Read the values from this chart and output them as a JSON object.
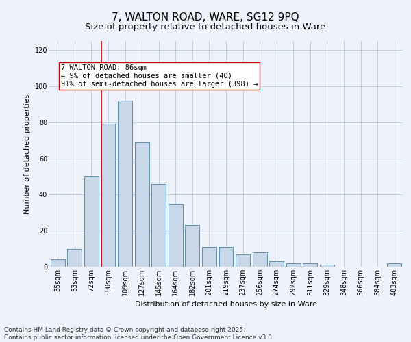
{
  "title_line1": "7, WALTON ROAD, WARE, SG12 9PQ",
  "title_line2": "Size of property relative to detached houses in Ware",
  "xlabel": "Distribution of detached houses by size in Ware",
  "ylabel": "Number of detached properties",
  "categories": [
    "35sqm",
    "53sqm",
    "72sqm",
    "90sqm",
    "109sqm",
    "127sqm",
    "145sqm",
    "164sqm",
    "182sqm",
    "201sqm",
    "219sqm",
    "237sqm",
    "256sqm",
    "274sqm",
    "292sqm",
    "311sqm",
    "329sqm",
    "348sqm",
    "366sqm",
    "384sqm",
    "403sqm"
  ],
  "values": [
    4,
    10,
    50,
    79,
    92,
    69,
    46,
    35,
    23,
    11,
    11,
    7,
    8,
    3,
    2,
    2,
    1,
    0,
    0,
    0,
    2
  ],
  "bar_color": "#c8d8e8",
  "bar_edge_color": "#6090b0",
  "property_line_color": "#cc0000",
  "annotation_text": "7 WALTON ROAD: 86sqm\n← 9% of detached houses are smaller (40)\n91% of semi-detached houses are larger (398) →",
  "annotation_box_color": "#ffffff",
  "annotation_box_edge": "#cc0000",
  "ylim": [
    0,
    125
  ],
  "yticks": [
    0,
    20,
    40,
    60,
    80,
    100,
    120
  ],
  "grid_color": "#b8c8dc",
  "background_color": "#eef2fa",
  "footer_text": "Contains HM Land Registry data © Crown copyright and database right 2025.\nContains public sector information licensed under the Open Government Licence v3.0.",
  "title_fontsize": 11,
  "subtitle_fontsize": 9.5,
  "axis_label_fontsize": 8,
  "tick_fontsize": 7,
  "annotation_fontsize": 7.5,
  "footer_fontsize": 6.5
}
